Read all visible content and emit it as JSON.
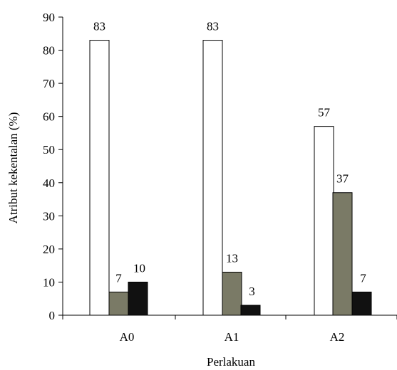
{
  "chart_data": {
    "type": "bar",
    "title": "",
    "xlabel": "Perlakuan",
    "ylabel": "Atribut kekentalan (%)",
    "ylim": [
      0,
      90
    ],
    "yticks": [
      0,
      10,
      20,
      30,
      40,
      50,
      60,
      70,
      80,
      90
    ],
    "categories": [
      "A0",
      "A1",
      "A2"
    ],
    "grid": false,
    "legend": "none",
    "series": [
      {
        "color": "#ffffff",
        "values": [
          83,
          83,
          57
        ]
      },
      {
        "color": "#7a7a66",
        "values": [
          7,
          13,
          37
        ]
      },
      {
        "color": "#111111",
        "values": [
          10,
          3,
          7
        ]
      }
    ],
    "data_labels": [
      [
        "83",
        "7",
        "10"
      ],
      [
        "83",
        "13",
        "3"
      ],
      [
        "57",
        "37",
        "7"
      ]
    ]
  }
}
